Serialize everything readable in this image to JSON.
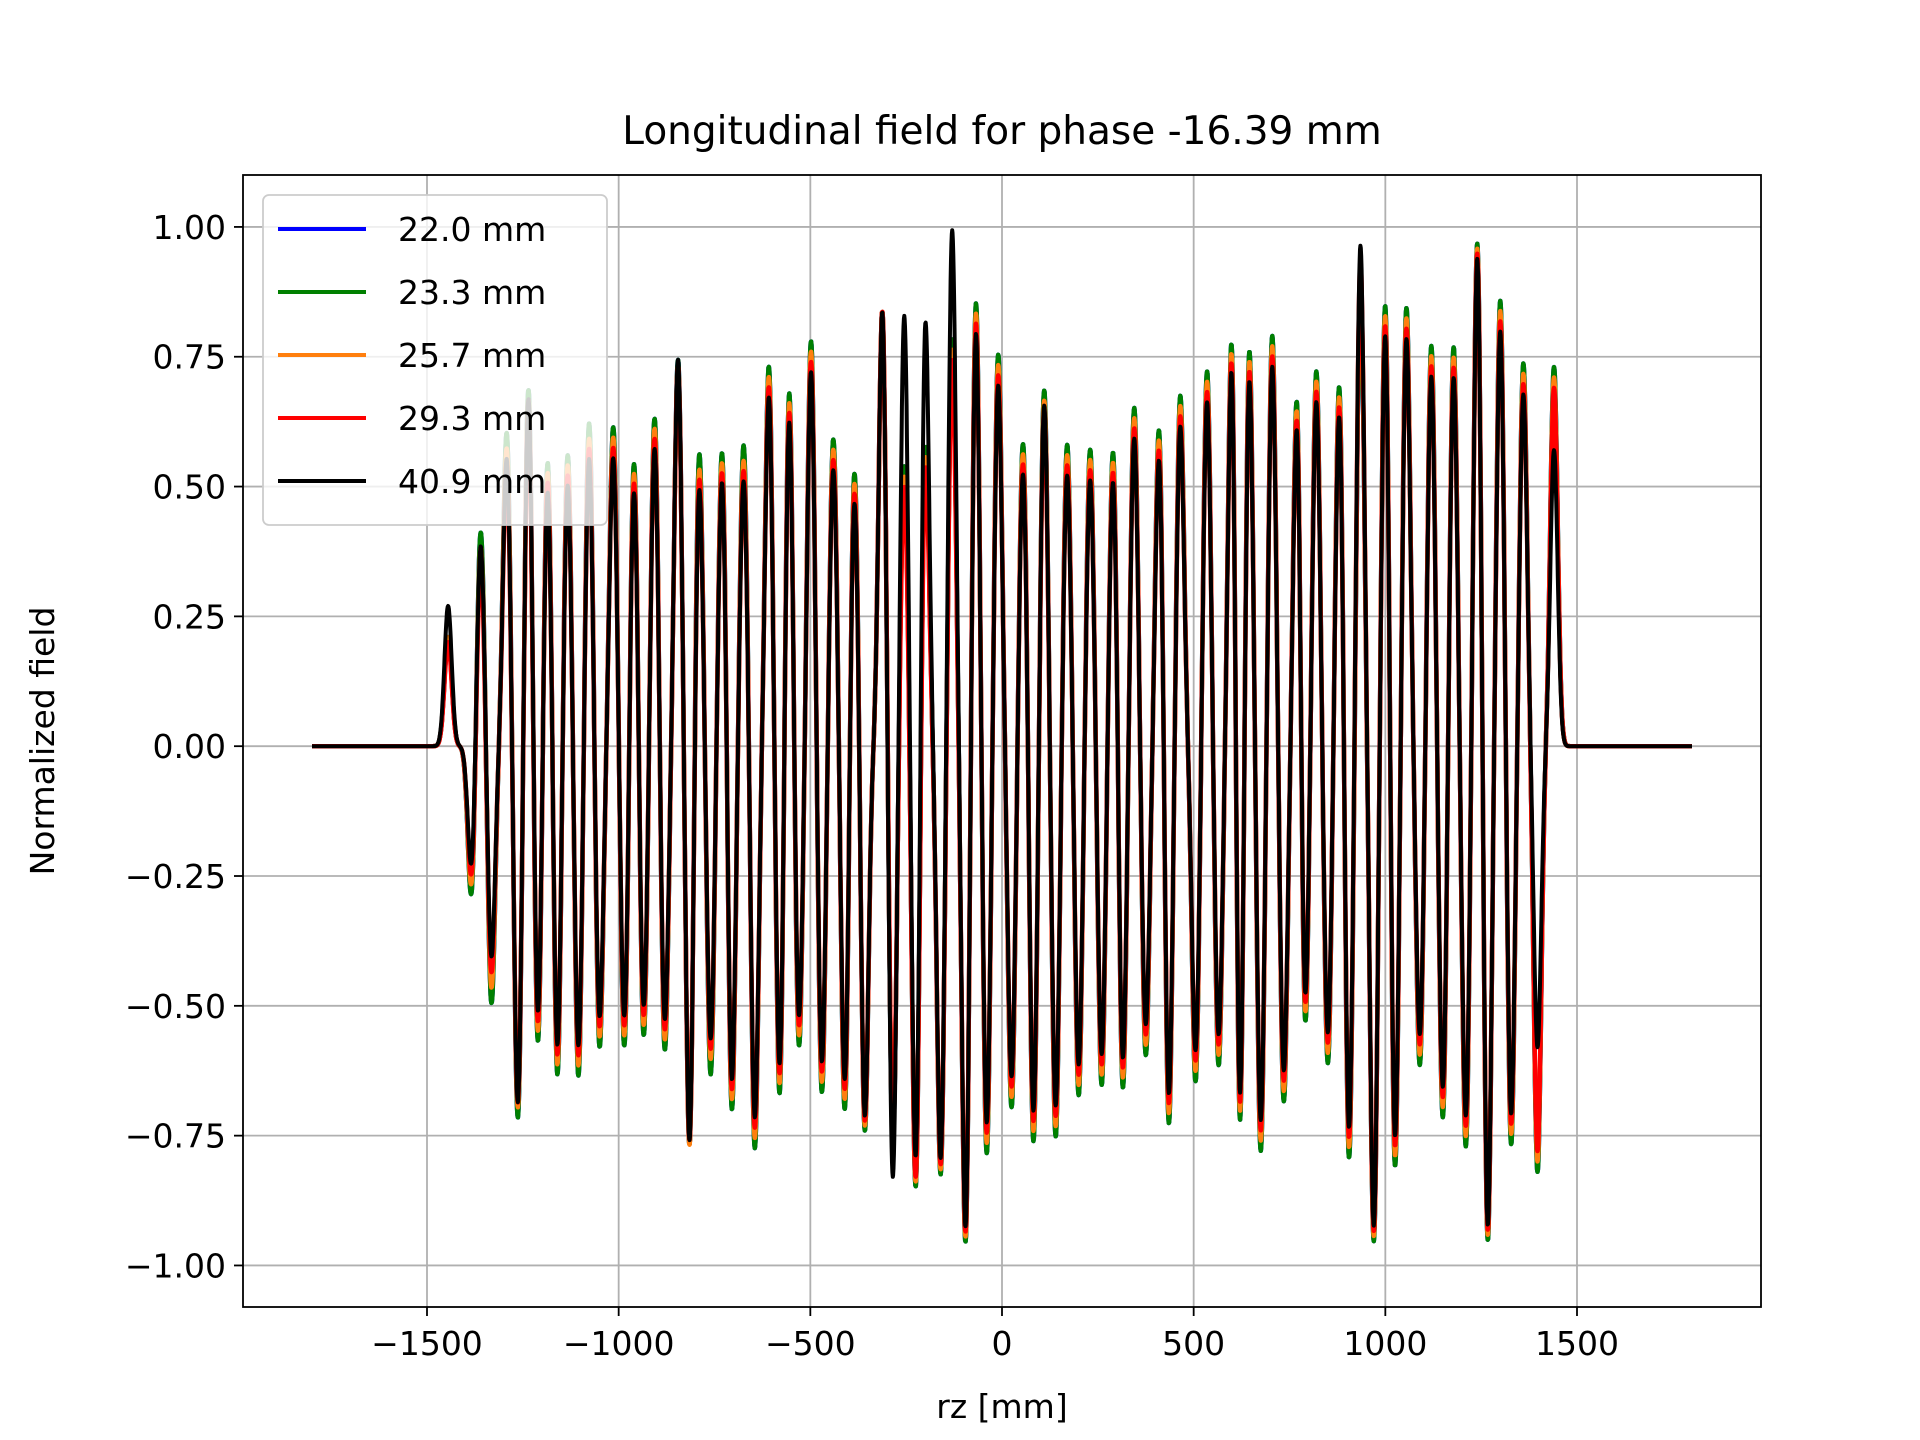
{
  "chart_data": {
    "type": "line",
    "title": "Longitudinal field for phase -16.39 mm",
    "xlabel": "rz [mm]",
    "ylabel": "Normalized field",
    "xlim": [
      -1980,
      1980
    ],
    "ylim": [
      -1.08,
      1.1
    ],
    "xticks": [
      -1500,
      -1000,
      -500,
      0,
      500,
      1000,
      1500
    ],
    "xtick_labels": [
      "−1500",
      "−1000",
      "−500",
      "0",
      "500",
      "1000",
      "1500"
    ],
    "yticks": [
      1.0,
      0.75,
      0.5,
      0.25,
      0.0,
      -0.25,
      -0.5,
      -0.75,
      -1.0
    ],
    "ytick_labels": [
      "1.00",
      "0.75",
      "0.50",
      "0.25",
      "0.00",
      "−0.25",
      "−0.50",
      "−0.75",
      "−1.00"
    ],
    "grid": true,
    "legend_position": "top-left",
    "x_range": [
      -1800,
      1800
    ],
    "pulse_centers": [
      -1445,
      -1384,
      -1360,
      -1332,
      -1292,
      -1263,
      -1235,
      -1211,
      -1185,
      -1160,
      -1133,
      -1105,
      -1077,
      -1050,
      -1014,
      -985,
      -960,
      -935,
      -906,
      -880,
      -845,
      -815,
      -790,
      -760,
      -730,
      -705,
      -674,
      -645,
      -608,
      -580,
      -555,
      -530,
      -498,
      -470,
      -440,
      -410,
      -385,
      -358,
      -312,
      -285,
      -255,
      -225,
      -200,
      -160,
      -130,
      -95,
      -68,
      -40,
      -10,
      25,
      55,
      82,
      110,
      140,
      170,
      200,
      230,
      260,
      290,
      315,
      345,
      375,
      410,
      435,
      465,
      505,
      535,
      565,
      600,
      620,
      645,
      675,
      705,
      735,
      770,
      790,
      820,
      850,
      880,
      905,
      935,
      970,
      1000,
      1025,
      1055,
      1090,
      1120,
      1150,
      1178,
      1210,
      1240,
      1267,
      1300,
      1328,
      1360,
      1397,
      1440
    ],
    "series": [
      {
        "name": "22.0 mm",
        "color": "#0000ff",
        "peaks": [
          0.21,
          -0.3,
          0.43,
          -0.5,
          0.61,
          -0.73,
          0.72,
          -0.61,
          0.58,
          -0.66,
          0.58,
          -0.65,
          0.64,
          -0.59,
          0.62,
          -0.6,
          0.58,
          -0.58,
          0.65,
          -0.6,
          0.75,
          -0.79,
          0.59,
          -0.64,
          0.59,
          -0.72,
          0.59,
          -0.78,
          0.74,
          -0.7,
          0.72,
          -0.6,
          0.79,
          -0.68,
          0.6,
          -0.72,
          0.56,
          -0.75,
          0.85,
          -0.78,
          0.55,
          -0.87,
          0.6,
          -0.83,
          0.79,
          -0.97,
          0.88,
          -0.8,
          0.76,
          -0.7,
          0.6,
          -0.78,
          0.7,
          -0.76,
          0.59,
          -0.68,
          0.58,
          -0.66,
          0.59,
          -0.68,
          0.66,
          -0.6,
          0.63,
          -0.75,
          0.68,
          -0.65,
          0.73,
          -0.62,
          0.85,
          -0.83,
          0.79,
          -0.79,
          0.8,
          -0.69,
          0.72,
          -0.6,
          0.73,
          -0.62,
          0.72,
          -0.82,
          0.88,
          -0.96,
          0.88,
          -0.84,
          0.85,
          -0.62,
          0.78,
          -0.73,
          0.78,
          -0.78,
          0.99,
          -0.97,
          0.87,
          -0.78,
          0.74,
          -0.82,
          0.73
        ]
      },
      {
        "name": "23.3 mm",
        "color": "#008000",
        "peaks": [
          0.21,
          -0.3,
          0.43,
          -0.5,
          0.61,
          -0.73,
          0.72,
          -0.61,
          0.58,
          -0.66,
          0.58,
          -0.65,
          0.64,
          -0.59,
          0.62,
          -0.6,
          0.58,
          -0.58,
          0.65,
          -0.6,
          0.75,
          -0.79,
          0.59,
          -0.64,
          0.59,
          -0.72,
          0.59,
          -0.78,
          0.74,
          -0.7,
          0.72,
          -0.6,
          0.79,
          -0.68,
          0.6,
          -0.72,
          0.56,
          -0.75,
          0.85,
          -0.78,
          0.55,
          -0.87,
          0.6,
          -0.83,
          0.79,
          -0.97,
          0.88,
          -0.8,
          0.76,
          -0.7,
          0.6,
          -0.78,
          0.7,
          -0.76,
          0.59,
          -0.68,
          0.58,
          -0.66,
          0.59,
          -0.68,
          0.66,
          -0.6,
          0.63,
          -0.75,
          0.68,
          -0.65,
          0.73,
          -0.62,
          0.85,
          -0.83,
          0.79,
          -0.79,
          0.8,
          -0.69,
          0.72,
          -0.6,
          0.73,
          -0.62,
          0.72,
          -0.82,
          0.88,
          -0.96,
          0.88,
          -0.84,
          0.85,
          -0.62,
          0.78,
          -0.73,
          0.78,
          -0.78,
          0.99,
          -0.97,
          0.87,
          -0.78,
          0.74,
          -0.82,
          0.73
        ]
      },
      {
        "name": "25.7 mm",
        "color": "#ff7f0e",
        "peaks": [
          0.21,
          -0.28,
          0.4,
          -0.47,
          0.58,
          -0.71,
          0.7,
          -0.59,
          0.56,
          -0.64,
          0.56,
          -0.63,
          0.61,
          -0.57,
          0.6,
          -0.58,
          0.56,
          -0.56,
          0.63,
          -0.58,
          0.74,
          -0.79,
          0.56,
          -0.61,
          0.57,
          -0.7,
          0.56,
          -0.76,
          0.72,
          -0.68,
          0.7,
          -0.58,
          0.77,
          -0.66,
          0.58,
          -0.7,
          0.54,
          -0.74,
          0.85,
          -0.77,
          0.53,
          -0.86,
          0.58,
          -0.82,
          0.77,
          -0.96,
          0.86,
          -0.78,
          0.74,
          -0.68,
          0.58,
          -0.76,
          0.68,
          -0.74,
          0.57,
          -0.66,
          0.56,
          -0.64,
          0.57,
          -0.66,
          0.64,
          -0.58,
          0.61,
          -0.73,
          0.66,
          -0.63,
          0.71,
          -0.6,
          0.83,
          -0.81,
          0.77,
          -0.77,
          0.78,
          -0.67,
          0.7,
          -0.58,
          0.71,
          -0.6,
          0.7,
          -0.8,
          0.92,
          -0.95,
          0.86,
          -0.82,
          0.83,
          -0.6,
          0.76,
          -0.71,
          0.76,
          -0.76,
          0.98,
          -0.96,
          0.85,
          -0.76,
          0.72,
          -0.8,
          0.71
        ]
      },
      {
        "name": "29.3 mm",
        "color": "#ff0000",
        "peaks": [
          0.2,
          -0.26,
          0.37,
          -0.44,
          0.55,
          -0.7,
          0.68,
          -0.57,
          0.54,
          -0.62,
          0.54,
          -0.61,
          0.59,
          -0.55,
          0.58,
          -0.56,
          0.54,
          -0.54,
          0.61,
          -0.56,
          0.74,
          -0.78,
          0.54,
          -0.59,
          0.55,
          -0.68,
          0.54,
          -0.74,
          0.7,
          -0.66,
          0.68,
          -0.56,
          0.75,
          -0.64,
          0.56,
          -0.68,
          0.52,
          -0.73,
          0.85,
          -0.77,
          0.51,
          -0.85,
          0.56,
          -0.81,
          0.75,
          -0.95,
          0.84,
          -0.76,
          0.72,
          -0.66,
          0.56,
          -0.74,
          0.66,
          -0.72,
          0.55,
          -0.64,
          0.54,
          -0.62,
          0.55,
          -0.64,
          0.62,
          -0.56,
          0.59,
          -0.71,
          0.64,
          -0.61,
          0.69,
          -0.58,
          0.81,
          -0.79,
          0.75,
          -0.75,
          0.76,
          -0.65,
          0.68,
          -0.56,
          0.69,
          -0.58,
          0.68,
          -0.78,
          0.94,
          -0.94,
          0.84,
          -0.8,
          0.81,
          -0.58,
          0.74,
          -0.69,
          0.74,
          -0.74,
          0.97,
          -0.95,
          0.83,
          -0.74,
          0.7,
          -0.78,
          0.69
        ]
      },
      {
        "name": "40.9 mm",
        "color": "#000000",
        "peaks": [
          0.27,
          -0.24,
          0.4,
          -0.41,
          0.56,
          -0.7,
          0.7,
          -0.55,
          0.52,
          -0.6,
          0.52,
          -0.59,
          0.57,
          -0.53,
          0.56,
          -0.54,
          0.52,
          -0.52,
          0.59,
          -0.54,
          0.75,
          -0.78,
          0.52,
          -0.57,
          0.53,
          -0.66,
          0.52,
          -0.72,
          0.68,
          -0.64,
          0.66,
          -0.54,
          0.73,
          -0.62,
          0.54,
          -0.66,
          0.5,
          -0.72,
          0.85,
          -0.85,
          0.84,
          -0.82,
          0.84,
          -0.8,
          1.0,
          -0.94,
          0.82,
          -0.74,
          0.7,
          -0.64,
          0.54,
          -0.72,
          0.67,
          -0.7,
          0.53,
          -0.62,
          0.52,
          -0.6,
          0.53,
          -0.62,
          0.6,
          -0.54,
          0.57,
          -0.69,
          0.62,
          -0.59,
          0.67,
          -0.56,
          0.79,
          -0.77,
          0.73,
          -0.73,
          0.74,
          -0.63,
          0.66,
          -0.54,
          0.67,
          -0.56,
          0.66,
          -0.76,
          0.97,
          -0.93,
          0.82,
          -0.78,
          0.79,
          -0.56,
          0.72,
          -0.67,
          0.72,
          -0.72,
          0.96,
          -0.94,
          0.81,
          -0.72,
          0.68,
          -0.58,
          0.57
        ]
      }
    ]
  }
}
